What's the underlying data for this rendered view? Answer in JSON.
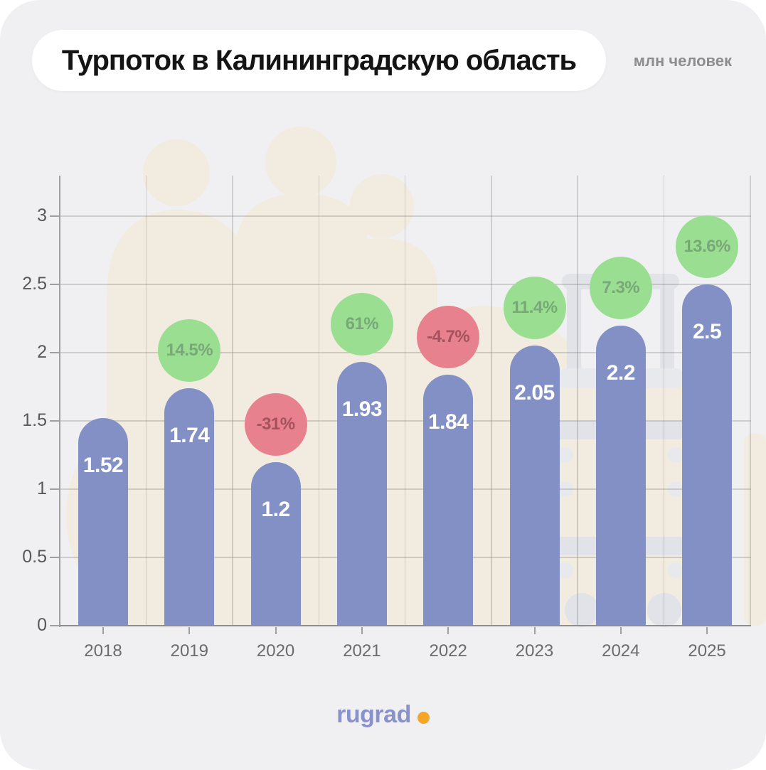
{
  "header": {
    "title": "Турпоток в Калининградскую область",
    "unit_label": "млн человек"
  },
  "footer": {
    "logo_text": "rugrad",
    "logo_color": "#8A92CE",
    "logo_dot_color": "#F5A528"
  },
  "chart_data": {
    "type": "bar",
    "title": "Турпоток в Калининградскую область",
    "ylabel": "млн человек",
    "categories": [
      "2018",
      "2019",
      "2020",
      "2021",
      "2022",
      "2023",
      "2024",
      "2025"
    ],
    "values": [
      1.52,
      1.74,
      1.2,
      1.93,
      1.84,
      2.05,
      2.2,
      2.5
    ],
    "value_labels": [
      "1.52",
      "1.74",
      "1.2",
      "1.93",
      "1.84",
      "2.05",
      "2.2",
      "2.5"
    ],
    "change_percent_labels": [
      null,
      "14.5%",
      "-31%",
      "61%",
      "-4.7%",
      "11.4%",
      "7.3%",
      "13.6%"
    ],
    "change_direction": [
      null,
      "up",
      "down",
      "up",
      "down",
      "up",
      "up",
      "up"
    ],
    "yticks": [
      0,
      0.5,
      1,
      1.5,
      2,
      2.5,
      3
    ],
    "ylim": [
      0,
      3.3
    ],
    "grid": true,
    "legend": "none",
    "colors": {
      "bar": "#8290C5",
      "bar_label": "#FFFFFF",
      "badge_up_bg": "#9ADE92",
      "badge_up_text": "#79A877",
      "badge_down_bg": "#E8818E",
      "badge_down_text": "#A3525E",
      "canvas": "#F0F0F2",
      "silhouette": "#F2EBDF",
      "suitcase": "#E2E3E8"
    }
  }
}
